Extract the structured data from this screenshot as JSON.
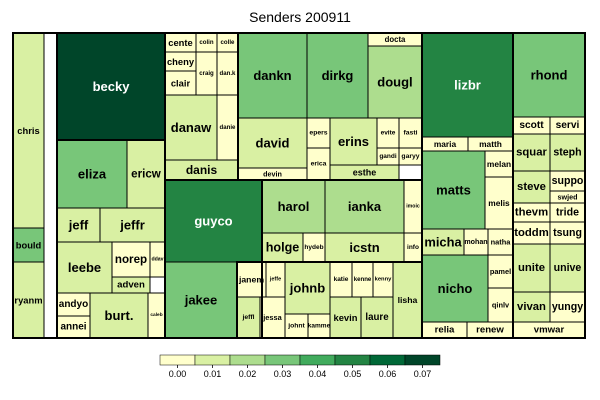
{
  "chart_data": {
    "type": "treemap",
    "title": "Senders 200911",
    "color_scale": {
      "ticks": [
        "0.00",
        "0.01",
        "0.02",
        "0.03",
        "0.04",
        "0.05",
        "0.06",
        "0.07"
      ],
      "colors": [
        "#ffffcc",
        "#d9f0a3",
        "#addd8e",
        "#78c679",
        "#41ab5d",
        "#238443",
        "#006837",
        "#004529"
      ]
    },
    "cells": [
      {
        "label": "chris",
        "value": 0.014
      },
      {
        "label": "bould",
        "value": 0.031
      },
      {
        "label": "ryanm",
        "value": 0.013
      },
      {
        "label": "becky",
        "value": 0.068
      },
      {
        "label": "eliza",
        "value": 0.026
      },
      {
        "label": "ericw",
        "value": 0.014
      },
      {
        "label": "jeff",
        "value": 0.006
      },
      {
        "label": "jeffr",
        "value": 0.007
      },
      {
        "label": "leebe",
        "value": 0.008
      },
      {
        "label": "norep",
        "value": 0.004
      },
      {
        "label": "ddav",
        "value": 0.002
      },
      {
        "label": "adven",
        "value": 0.006
      },
      {
        "label": "andyo",
        "value": 0.004
      },
      {
        "label": "annei",
        "value": 0.003
      },
      {
        "label": "burt.",
        "value": 0.007
      },
      {
        "label": "caleb",
        "value": 0.002
      },
      {
        "label": "cente",
        "value": 0.004
      },
      {
        "label": "colin",
        "value": 0.002
      },
      {
        "label": "colle",
        "value": 0.002
      },
      {
        "label": "cheny",
        "value": 0.003
      },
      {
        "label": "craig",
        "value": 0.002
      },
      {
        "label": "dan.k",
        "value": 0.002
      },
      {
        "label": "clair",
        "value": 0.003
      },
      {
        "label": "danaw",
        "value": 0.014
      },
      {
        "label": "danie",
        "value": 0.002
      },
      {
        "label": "danis",
        "value": 0.005
      },
      {
        "label": "dankn",
        "value": 0.028
      },
      {
        "label": "david",
        "value": 0.015
      },
      {
        "label": "devin",
        "value": 0.004
      },
      {
        "label": "epers",
        "value": 0.002
      },
      {
        "label": "erica",
        "value": 0.002
      },
      {
        "label": "erins",
        "value": 0.009
      },
      {
        "label": "evite",
        "value": 0.002
      },
      {
        "label": "fasti",
        "value": 0.002
      },
      {
        "label": "gandi",
        "value": 0.002
      },
      {
        "label": "garyy",
        "value": 0.002
      },
      {
        "label": "esthe",
        "value": 0.005
      },
      {
        "label": "dirkg",
        "value": 0.027
      },
      {
        "label": "docta",
        "value": 0.004
      },
      {
        "label": "dougl",
        "value": 0.019
      },
      {
        "label": "guyco",
        "value": 0.051
      },
      {
        "label": "jakee",
        "value": 0.026
      },
      {
        "label": "harol",
        "value": 0.017
      },
      {
        "label": "holge",
        "value": 0.008
      },
      {
        "label": "hydeb",
        "value": 0.002
      },
      {
        "label": "ianka",
        "value": 0.017
      },
      {
        "label": "imoic",
        "value": 0.002
      },
      {
        "label": "icstn",
        "value": 0.013
      },
      {
        "label": "info",
        "value": 0.002
      },
      {
        "label": "janem",
        "value": 0.004
      },
      {
        "label": "jeffe",
        "value": 0.002
      },
      {
        "label": "johnb",
        "value": 0.007
      },
      {
        "label": "katie",
        "value": 0.002
      },
      {
        "label": "kenne",
        "value": 0.002
      },
      {
        "label": "kenny",
        "value": 0.002
      },
      {
        "label": "jeffl",
        "value": 0.005
      },
      {
        "label": "jessa",
        "value": 0.002
      },
      {
        "label": "johnt",
        "value": 0.002
      },
      {
        "label": "kamme",
        "value": 0.002
      },
      {
        "label": "kevin",
        "value": 0.007
      },
      {
        "label": "laure",
        "value": 0.006
      },
      {
        "label": "lisha",
        "value": 0.006
      },
      {
        "label": "lizbr",
        "value": 0.054
      },
      {
        "label": "maria",
        "value": 0.004
      },
      {
        "label": "matth",
        "value": 0.004
      },
      {
        "label": "matts",
        "value": 0.029
      },
      {
        "label": "melan",
        "value": 0.003
      },
      {
        "label": "melis",
        "value": 0.004
      },
      {
        "label": "micha",
        "value": 0.005
      },
      {
        "label": "mohan",
        "value": 0.002
      },
      {
        "label": "natha",
        "value": 0.003
      },
      {
        "label": "nicho",
        "value": 0.03
      },
      {
        "label": "pamel",
        "value": 0.002
      },
      {
        "label": "qinlv",
        "value": 0.002
      },
      {
        "label": "relia",
        "value": 0.004
      },
      {
        "label": "renew",
        "value": 0.004
      },
      {
        "label": "rhond",
        "value": 0.026
      },
      {
        "label": "scott",
        "value": 0.004
      },
      {
        "label": "servi",
        "value": 0.004
      },
      {
        "label": "squar",
        "value": 0.006
      },
      {
        "label": "steph",
        "value": 0.006
      },
      {
        "label": "steve",
        "value": 0.006
      },
      {
        "label": "suppo",
        "value": 0.003
      },
      {
        "label": "swjed",
        "value": 0.003
      },
      {
        "label": "thevm",
        "value": 0.004
      },
      {
        "label": "tride",
        "value": 0.003
      },
      {
        "label": "toddm",
        "value": 0.004
      },
      {
        "label": "tsung",
        "value": 0.003
      },
      {
        "label": "unite",
        "value": 0.006
      },
      {
        "label": "unive",
        "value": 0.006
      },
      {
        "label": "vivan",
        "value": 0.006
      },
      {
        "label": "yungy",
        "value": 0.003
      },
      {
        "label": "vmwar",
        "value": 0.004
      }
    ]
  }
}
